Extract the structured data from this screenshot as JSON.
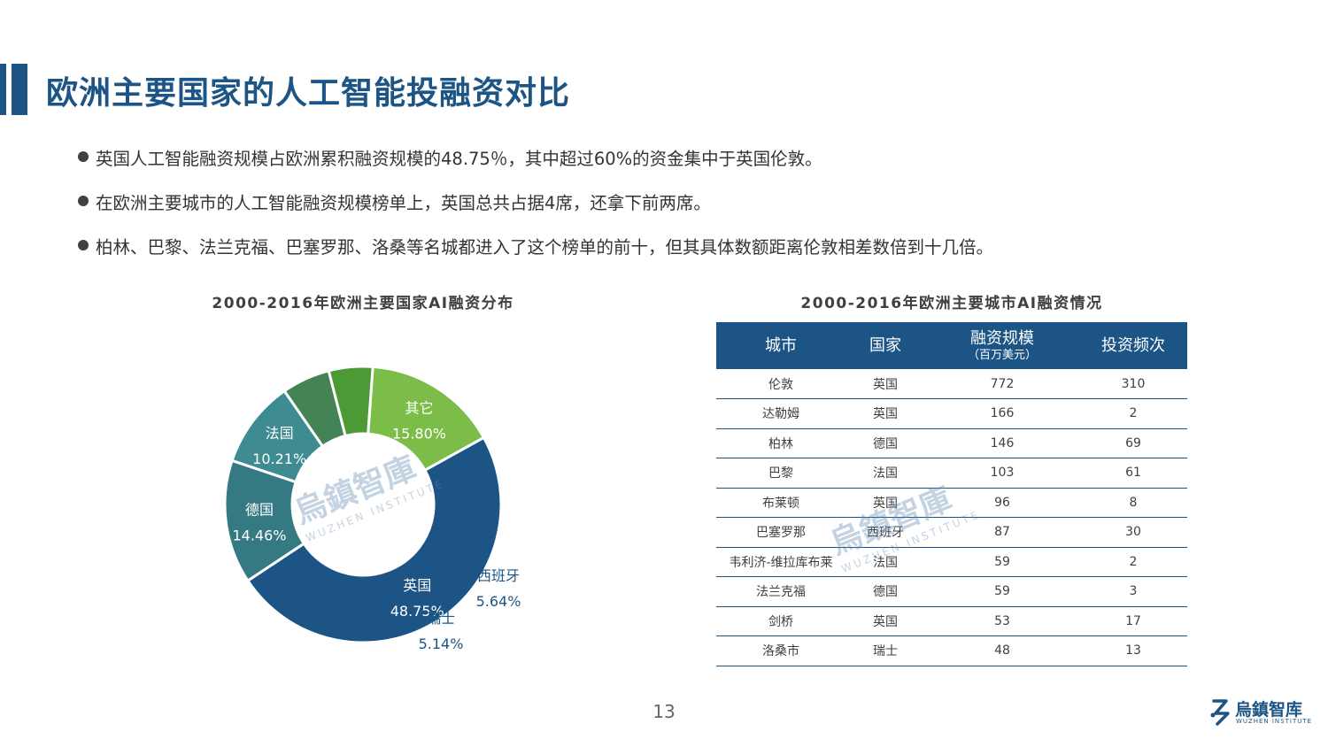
{
  "title": "欧洲主要国家的人工智能投融资对比",
  "bullets": [
    "英国人工智能融资规模占欧洲累积融资规模的48.75％，其中超过60%的资金集中于英国伦敦。",
    "在欧洲主要城市的人工智能融资规模榜单上，英国总共占据4席，还拿下前两席。",
    "柏林、巴黎、法兰克福、巴塞罗那、洛桑等名城都进入了这个榜单的前十，但其具体数额距离伦敦相差数倍到十几倍。"
  ],
  "chart_data": [
    {
      "type": "pie",
      "title": "2000-2016年欧洲主要国家AI融资分布",
      "donut": true,
      "categories": [
        "英国",
        "德国",
        "法国",
        "西班牙",
        "瑞士",
        "其它"
      ],
      "values": [
        48.75,
        14.46,
        10.21,
        5.64,
        5.14,
        15.8
      ],
      "labels": [
        "48.75%",
        "14.46%",
        "10.21%",
        "5.64%",
        "5.14%",
        "15.80%"
      ],
      "colors": [
        "#1c5585",
        "#357a82",
        "#3e8c92",
        "#448454",
        "#4c9a35",
        "#7bbd48"
      ]
    },
    {
      "type": "table",
      "title": "2000-2016年欧洲主要城市AI融资情况",
      "columns": [
        {
          "main": "城市",
          "sub": ""
        },
        {
          "main": "国家",
          "sub": ""
        },
        {
          "main": "融资规模",
          "sub": "（百万美元）"
        },
        {
          "main": "投资频次",
          "sub": ""
        }
      ],
      "rows": [
        [
          "伦敦",
          "英国",
          "772",
          "310"
        ],
        [
          "达勒姆",
          "英国",
          "166",
          "2"
        ],
        [
          "柏林",
          "德国",
          "146",
          "69"
        ],
        [
          "巴黎",
          "法国",
          "103",
          "61"
        ],
        [
          "布莱顿",
          "英国",
          "96",
          "8"
        ],
        [
          "巴塞罗那",
          "西班牙",
          "87",
          "30"
        ],
        [
          "韦利济-维拉库布莱",
          "法国",
          "59",
          "2"
        ],
        [
          "法兰克福",
          "德国",
          "59",
          "3"
        ],
        [
          "剑桥",
          "英国",
          "53",
          "17"
        ],
        [
          "洛桑市",
          "瑞士",
          "48",
          "13"
        ]
      ]
    }
  ],
  "watermark": {
    "main": "烏鎮智庫",
    "sub": "WUZHEN INSTITUTE"
  },
  "page_number": "13",
  "logo": {
    "text": "烏鎮智库",
    "sub": "WUZHEN INSTITUTE"
  },
  "colors": {
    "accent": "#1c5585",
    "text": "#333333"
  }
}
